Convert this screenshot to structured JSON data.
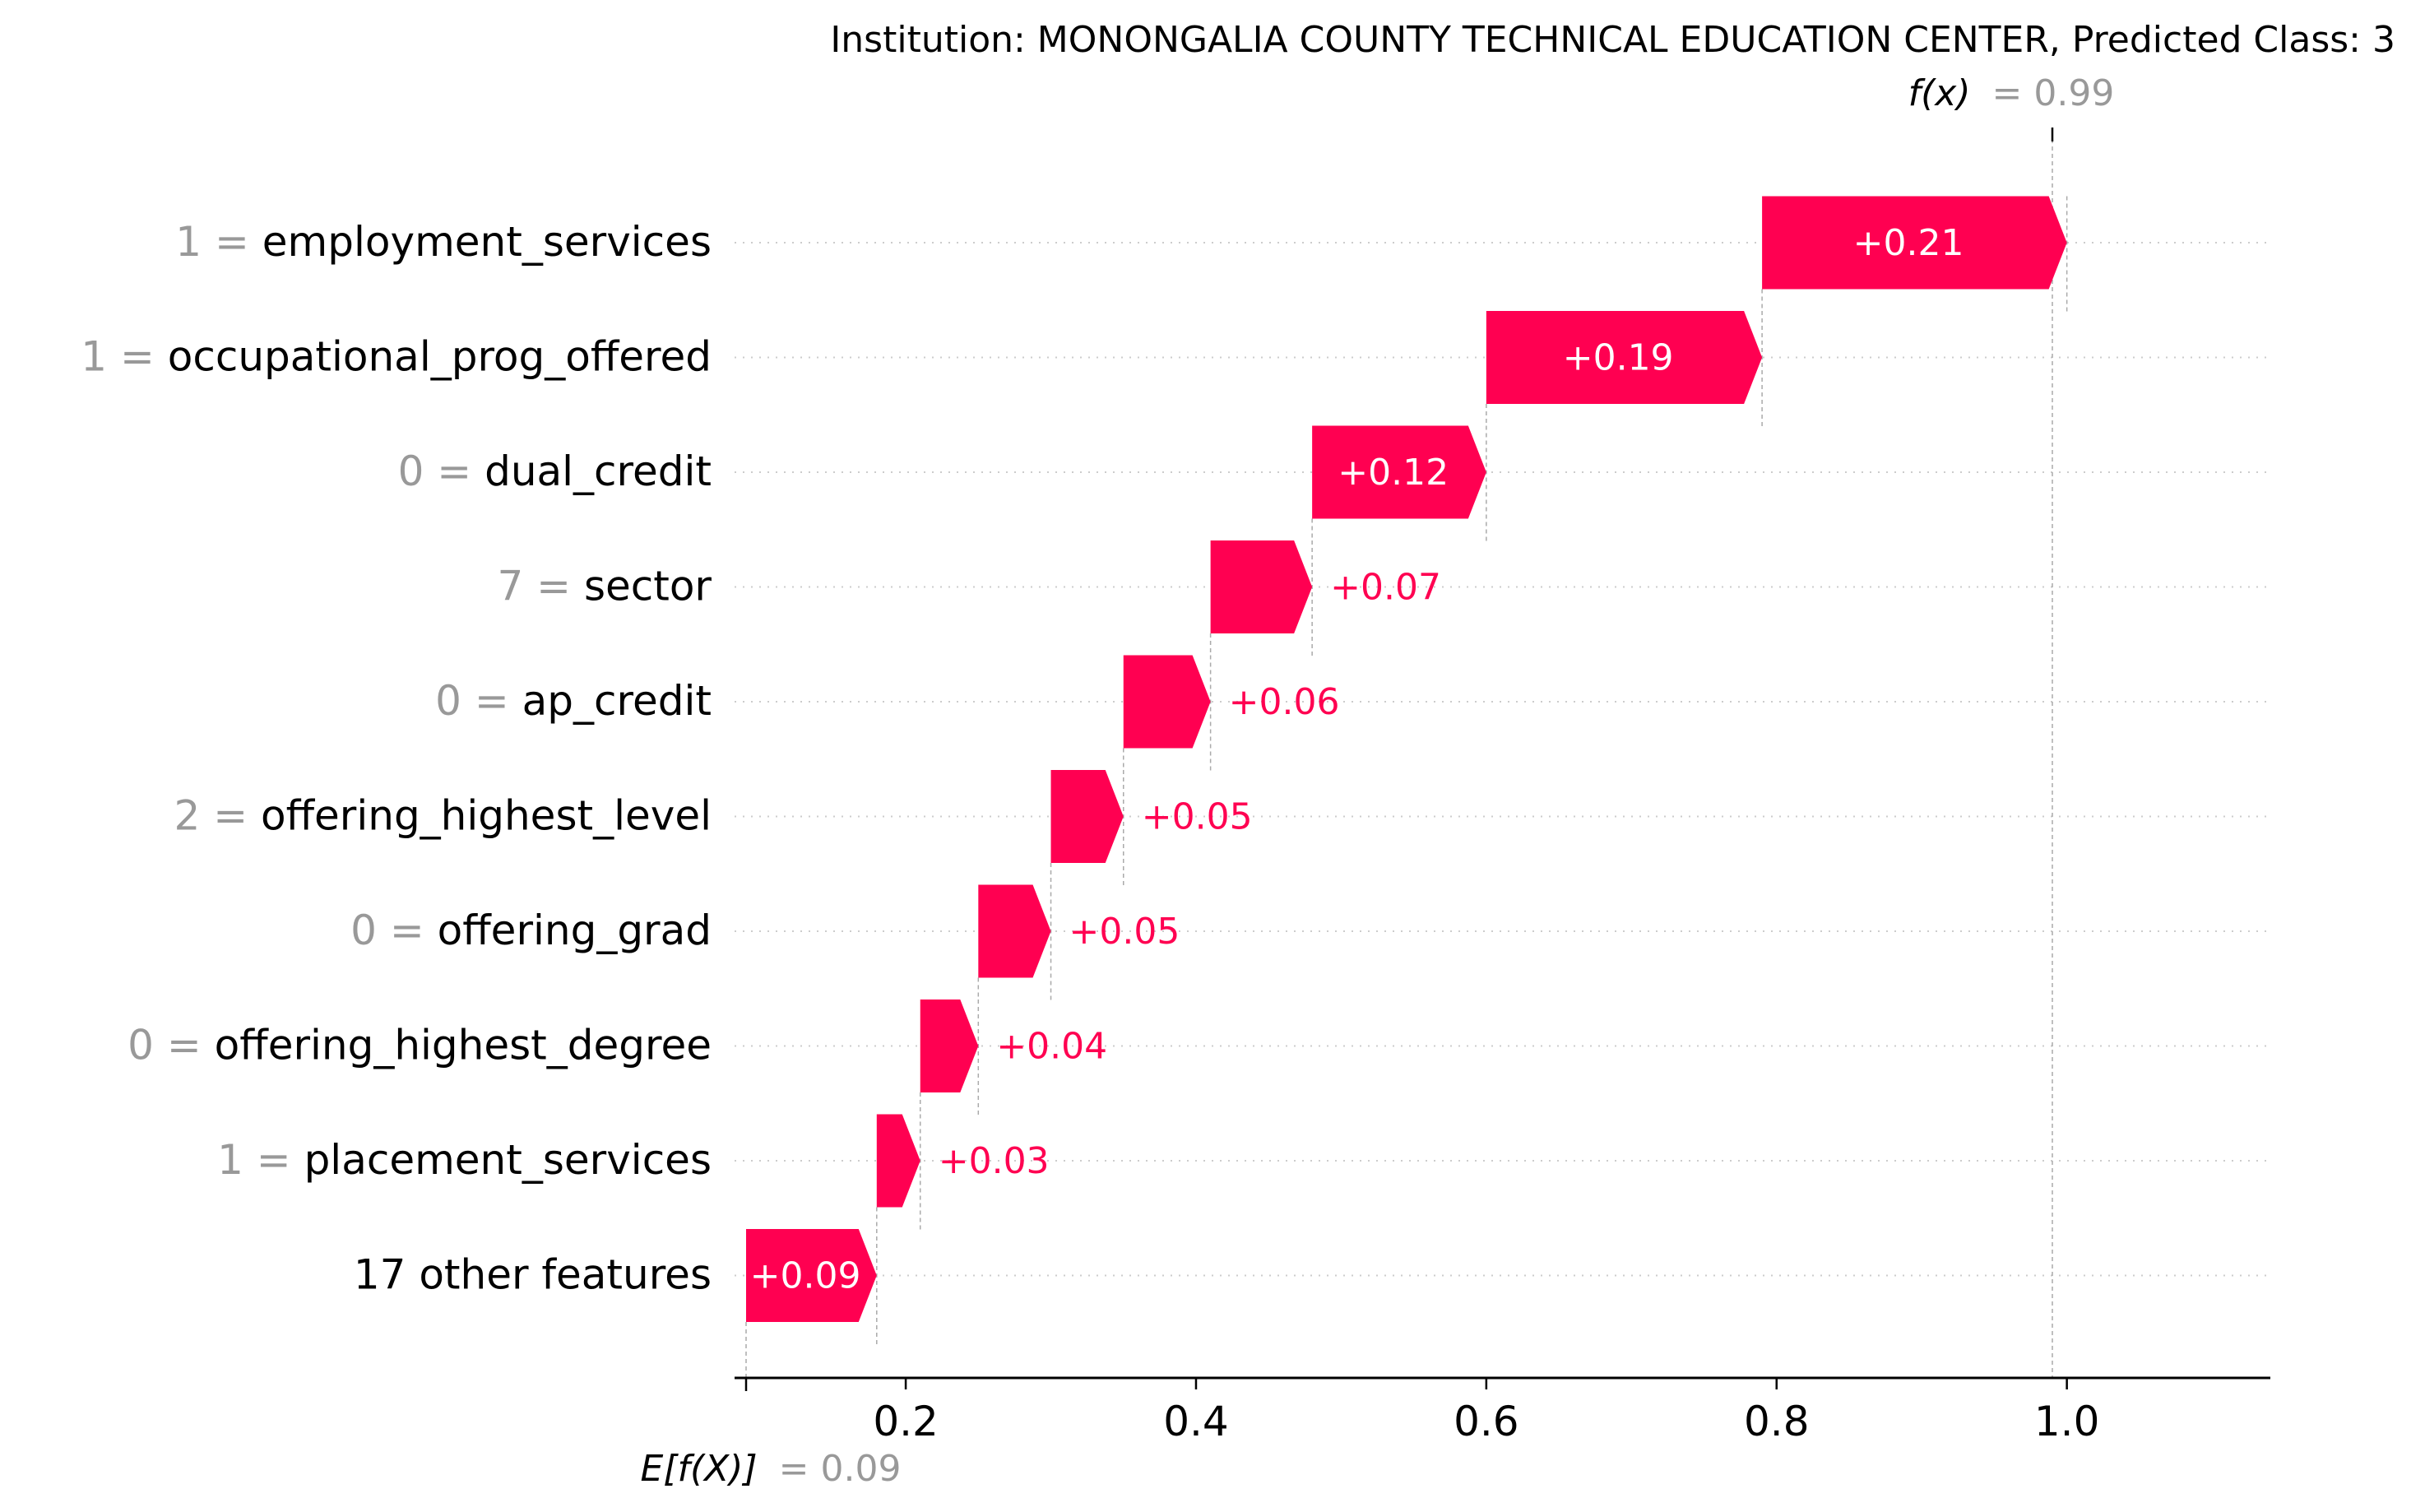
{
  "chart_data": {
    "type": "bar",
    "subtype": "shap-waterfall",
    "title": "Institution: MONONGALIA COUNTY TECHNICAL EDUCATION CENTER, Predicted Class: 3",
    "fx_label": "f(x)",
    "fx_value_text": "= 0.99",
    "fx": 0.99,
    "efx_label": "E[f(X)]",
    "efx_value_text": "= 0.09",
    "base": 0.09,
    "xlim": [
      0.09,
      1.15
    ],
    "xticks": [
      0.2,
      0.4,
      0.6,
      0.8,
      1.0
    ],
    "xtick_labels": [
      "0.2",
      "0.4",
      "0.6",
      "0.8",
      "1.0"
    ],
    "grid": "horizontal dotted",
    "features": [
      {
        "value": "1",
        "name": "employment_services",
        "contribution": 0.21,
        "label": "+0.21"
      },
      {
        "value": "1",
        "name": "occupational_prog_offered",
        "contribution": 0.19,
        "label": "+0.19"
      },
      {
        "value": "0",
        "name": "dual_credit",
        "contribution": 0.12,
        "label": "+0.12"
      },
      {
        "value": "7",
        "name": "sector",
        "contribution": 0.07,
        "label": "+0.07"
      },
      {
        "value": "0",
        "name": "ap_credit",
        "contribution": 0.06,
        "label": "+0.06"
      },
      {
        "value": "2",
        "name": "offering_highest_level",
        "contribution": 0.05,
        "label": "+0.05"
      },
      {
        "value": "0",
        "name": "offering_grad",
        "contribution": 0.05,
        "label": "+0.05"
      },
      {
        "value": "0",
        "name": "offering_highest_degree",
        "contribution": 0.04,
        "label": "+0.04"
      },
      {
        "value": "1",
        "name": "placement_services",
        "contribution": 0.03,
        "label": "+0.03"
      },
      {
        "value": "",
        "name": "17 other features",
        "contribution": 0.09,
        "label": "+0.09"
      }
    ],
    "colors": {
      "positive": "#ff0051",
      "value_gray": "#999999",
      "grid": "#cccccc",
      "axis": "#000000"
    }
  }
}
